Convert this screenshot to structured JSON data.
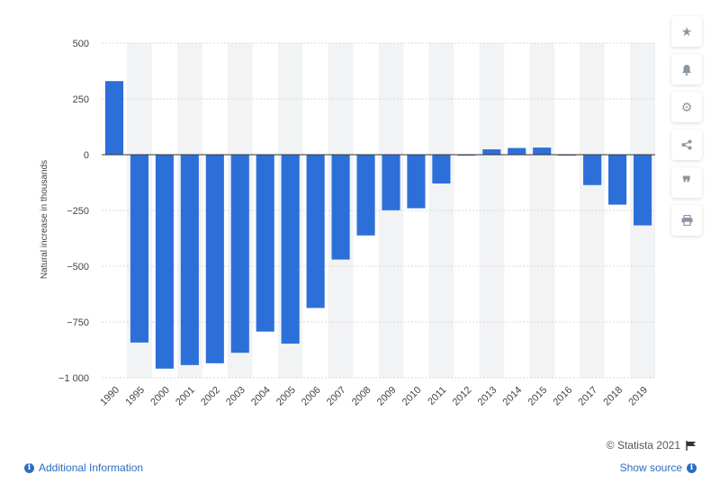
{
  "chart_data": {
    "type": "bar",
    "categories": [
      "1990",
      "1995",
      "2000",
      "2001",
      "2002",
      "2003",
      "2004",
      "2005",
      "2006",
      "2007",
      "2008",
      "2009",
      "2010",
      "2011",
      "2012",
      "2013",
      "2014",
      "2015",
      "2016",
      "2017",
      "2018",
      "2019"
    ],
    "values": [
      330,
      -842,
      -959,
      -943,
      -935,
      -888,
      -793,
      -847,
      -687,
      -470,
      -362,
      -249,
      -240,
      -129,
      -4,
      24,
      30,
      32,
      -2,
      -136,
      -224,
      -317
    ],
    "title": "",
    "xlabel": "",
    "ylabel": "Natural increase in thousands",
    "ylim": [
      -1000,
      500
    ],
    "yticks": [
      500,
      250,
      0,
      -250,
      -500,
      -750,
      -1000
    ],
    "ytick_labels": [
      "500",
      "250",
      "0",
      "−250",
      "−500",
      "−750",
      "−1 000"
    ],
    "bar_color": "#2d6fd9",
    "grid": true
  },
  "toolbar": {
    "icons": [
      "star-icon",
      "bell-icon",
      "gear-icon",
      "share-icon",
      "quote-icon",
      "print-icon"
    ]
  },
  "footer": {
    "credit": "© Statista 2021",
    "additional_info": "Additional Information",
    "show_source": "Show source"
  }
}
